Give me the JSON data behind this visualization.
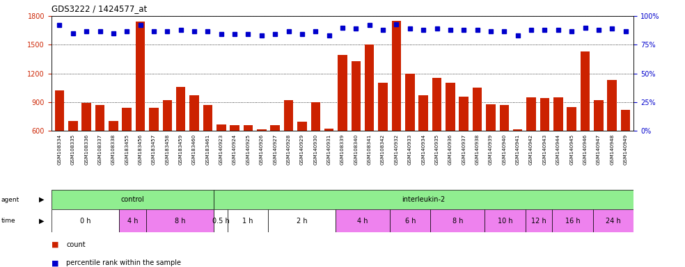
{
  "title": "GDS3222 / 1424577_at",
  "samples": [
    "GSM108334",
    "GSM108335",
    "GSM108336",
    "GSM108337",
    "GSM108338",
    "GSM183455",
    "GSM183456",
    "GSM183457",
    "GSM183458",
    "GSM183459",
    "GSM183460",
    "GSM183461",
    "GSM140923",
    "GSM140924",
    "GSM140925",
    "GSM140926",
    "GSM140927",
    "GSM140928",
    "GSM140929",
    "GSM140930",
    "GSM140931",
    "GSM108339",
    "GSM108340",
    "GSM108341",
    "GSM108342",
    "GSM140932",
    "GSM140933",
    "GSM140934",
    "GSM140935",
    "GSM140936",
    "GSM140937",
    "GSM140938",
    "GSM140939",
    "GSM140940",
    "GSM140941",
    "GSM140942",
    "GSM140943",
    "GSM140944",
    "GSM140945",
    "GSM140946",
    "GSM140947",
    "GSM140948",
    "GSM140949"
  ],
  "counts": [
    1020,
    700,
    890,
    870,
    700,
    840,
    1740,
    840,
    920,
    1060,
    970,
    870,
    670,
    660,
    660,
    615,
    660,
    920,
    695,
    900,
    620,
    1390,
    1330,
    1500,
    1100,
    1750,
    1200,
    970,
    1150,
    1100,
    960,
    1050,
    880,
    870,
    615,
    950,
    940,
    950,
    850,
    1430,
    920,
    1130,
    820
  ],
  "percentiles": [
    92,
    85,
    87,
    87,
    85,
    87,
    92,
    87,
    87,
    88,
    87,
    87,
    84,
    84,
    84,
    83,
    84,
    87,
    84,
    87,
    83,
    90,
    89,
    92,
    88,
    93,
    89,
    88,
    89,
    88,
    88,
    88,
    87,
    87,
    83,
    88,
    88,
    88,
    87,
    90,
    88,
    89,
    87
  ],
  "agent_groups": [
    {
      "label": "control",
      "start": 0,
      "end": 12,
      "color": "#90EE90"
    },
    {
      "label": "interleukin-2",
      "start": 12,
      "end": 43,
      "color": "#90EE90"
    }
  ],
  "time_groups": [
    {
      "label": "0 h",
      "start": 0,
      "end": 5,
      "color": "#ffffff"
    },
    {
      "label": "4 h",
      "start": 5,
      "end": 7,
      "color": "#EE82EE"
    },
    {
      "label": "8 h",
      "start": 7,
      "end": 12,
      "color": "#EE82EE"
    },
    {
      "label": "0.5 h",
      "start": 12,
      "end": 13,
      "color": "#ffffff"
    },
    {
      "label": "1 h",
      "start": 13,
      "end": 16,
      "color": "#ffffff"
    },
    {
      "label": "2 h",
      "start": 16,
      "end": 21,
      "color": "#ffffff"
    },
    {
      "label": "4 h",
      "start": 21,
      "end": 25,
      "color": "#EE82EE"
    },
    {
      "label": "6 h",
      "start": 25,
      "end": 28,
      "color": "#EE82EE"
    },
    {
      "label": "8 h",
      "start": 28,
      "end": 32,
      "color": "#EE82EE"
    },
    {
      "label": "10 h",
      "start": 32,
      "end": 35,
      "color": "#EE82EE"
    },
    {
      "label": "12 h",
      "start": 35,
      "end": 37,
      "color": "#EE82EE"
    },
    {
      "label": "16 h",
      "start": 37,
      "end": 40,
      "color": "#EE82EE"
    },
    {
      "label": "24 h",
      "start": 40,
      "end": 43,
      "color": "#EE82EE"
    }
  ],
  "ylim_left": [
    600,
    1800
  ],
  "ylim_right": [
    0,
    100
  ],
  "yticks_left": [
    600,
    900,
    1200,
    1500,
    1800
  ],
  "yticks_right": [
    0,
    25,
    50,
    75,
    100
  ],
  "bar_color": "#cc2200",
  "dot_color": "#0000cc",
  "plot_bg": "#ffffff",
  "label_bg": "#d8d8d8"
}
